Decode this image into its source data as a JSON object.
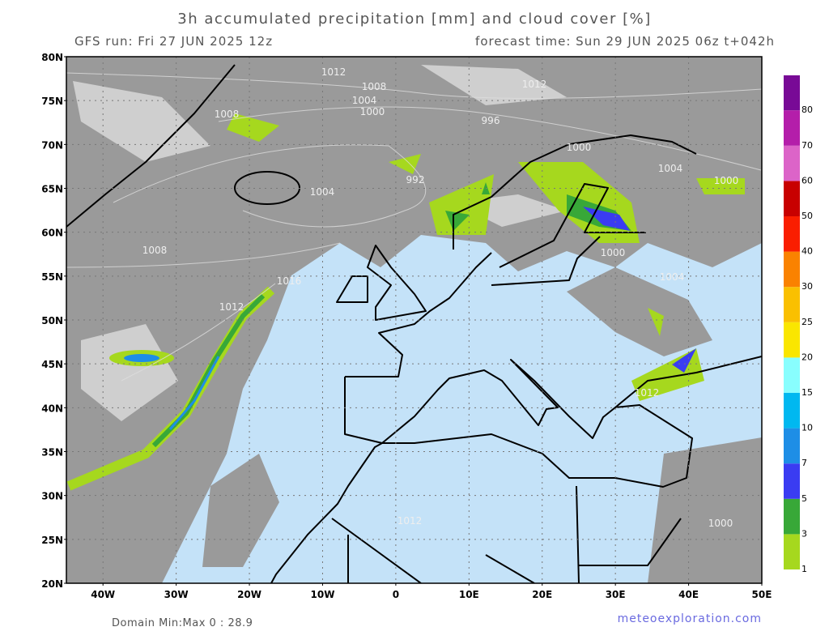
{
  "header": {
    "title": "3h accumulated precipitation [mm] and cloud cover [%]",
    "run": "GFS run: Fri 27 JUN 2025 12z",
    "forecast": "forecast time: Sun 29 JUN 2025 06z  t+042h"
  },
  "map": {
    "lat_labels": [
      "80N",
      "75N",
      "70N",
      "65N",
      "60N",
      "55N",
      "50N",
      "45N",
      "40N",
      "35N",
      "30N",
      "25N",
      "20N"
    ],
    "lon_labels": [
      "40W",
      "30W",
      "20W",
      "10W",
      "0",
      "10E",
      "20E",
      "30E",
      "40E",
      "50E"
    ],
    "isobar_labels": [
      "1012",
      "1008",
      "1004",
      "1000",
      "1012",
      "1008",
      "996",
      "992",
      "1004",
      "1000",
      "1004",
      "1000",
      "1008",
      "1016",
      "1012",
      "1000",
      "1004",
      "1012",
      "1012",
      "1000"
    ]
  },
  "colorbar": {
    "levels": [
      {
        "label": "1",
        "color": "#a6d81e"
      },
      {
        "label": "3",
        "color": "#38a838"
      },
      {
        "label": "5",
        "color": "#3a3cf2"
      },
      {
        "label": "7",
        "color": "#1e8ee6"
      },
      {
        "label": "10",
        "color": "#00b8f0"
      },
      {
        "label": "15",
        "color": "#88fefe"
      },
      {
        "label": "20",
        "color": "#fae600"
      },
      {
        "label": "25",
        "color": "#fac000"
      },
      {
        "label": "30",
        "color": "#fa8200"
      },
      {
        "label": "40",
        "color": "#fa1e00"
      },
      {
        "label": "50",
        "color": "#c80000"
      },
      {
        "label": "60",
        "color": "#dc64c8"
      },
      {
        "label": "70",
        "color": "#b41eaa"
      },
      {
        "label": "80",
        "color": "#780a96"
      }
    ]
  },
  "footer": {
    "domain": "Domain Min:Max 0 : 28.9",
    "site": "meteoexploration.com"
  }
}
